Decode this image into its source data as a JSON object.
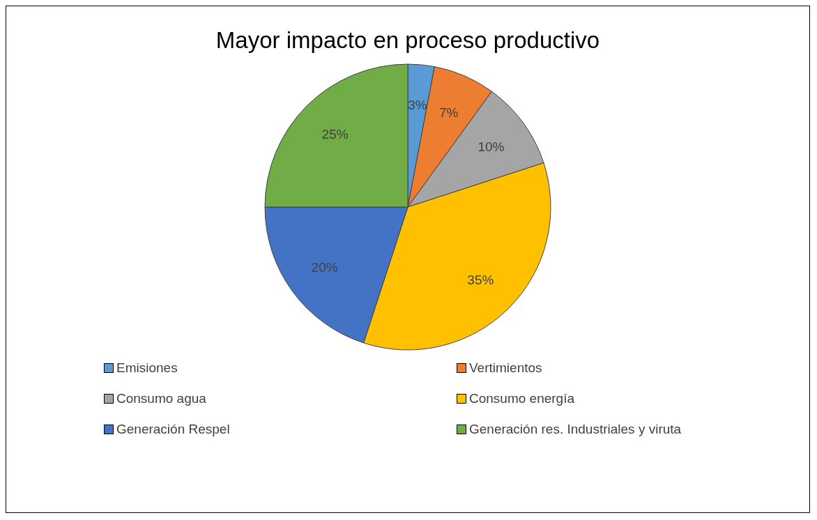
{
  "chart_data": {
    "type": "pie",
    "title": "Mayor impacto en proceso productivo",
    "categories": [
      "Emisiones",
      "Vertimientos",
      "Consumo agua",
      "Consumo energía",
      "Generación Respel",
      "Generación res. Industriales y viruta"
    ],
    "values": [
      3,
      7,
      10,
      35,
      20,
      25
    ],
    "value_labels": [
      "3%",
      "7%",
      "10%",
      "35%",
      "20%",
      "25%"
    ],
    "colors": [
      "#5b9bd5",
      "#ed7d31",
      "#a5a5a5",
      "#ffc000",
      "#4472c4",
      "#70ad47"
    ],
    "legend": "bottom"
  }
}
